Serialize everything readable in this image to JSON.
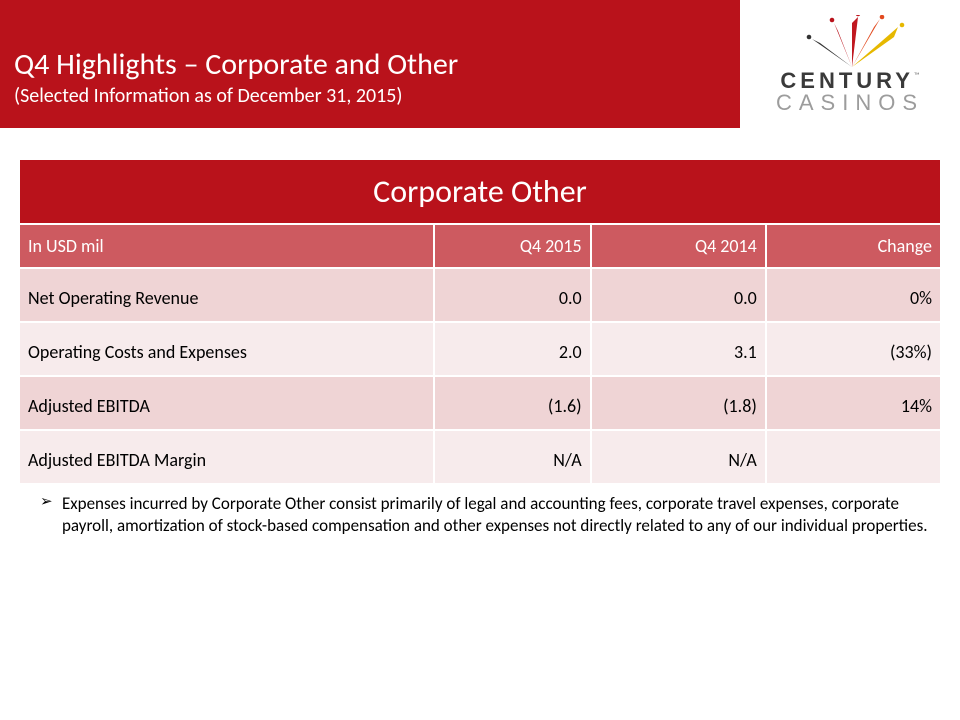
{
  "colors": {
    "brand_red": "#b9121b",
    "head_bg": "#cd5a60",
    "row_alt0": "#efd4d5",
    "row_alt1": "#f7ebec"
  },
  "header": {
    "title": "Q4 Highlights – Corporate and Other",
    "subtitle": "(Selected Information as of December 31, 2015)"
  },
  "logo": {
    "line1": "CENTURY",
    "line2": "CASINOS",
    "tm": "™"
  },
  "table": {
    "section_title": "Corporate Other",
    "columns": [
      "In USD mil",
      "Q4 2015",
      "Q4 2014",
      "Change"
    ],
    "col_widths": [
      "45%",
      "17%",
      "19%",
      "19%"
    ],
    "rows": [
      {
        "cells": [
          "Net Operating Revenue",
          "0.0",
          "0.0",
          "0%"
        ]
      },
      {
        "cells": [
          "Operating Costs and Expenses",
          "2.0",
          "3.1",
          "(33%)"
        ]
      },
      {
        "cells": [
          "Adjusted EBITDA",
          "(1.6)",
          "(1.8)",
          "14%"
        ]
      },
      {
        "cells": [
          "Adjusted EBITDA Margin",
          "N/A",
          "N/A",
          ""
        ]
      }
    ]
  },
  "notes": [
    "Expenses incurred by Corporate Other consist primarily of legal and accounting fees, corporate travel expenses, corporate payroll, amortization of stock-based compensation and other expenses not directly related to any of our individual properties."
  ],
  "bullet_glyph": "➢"
}
